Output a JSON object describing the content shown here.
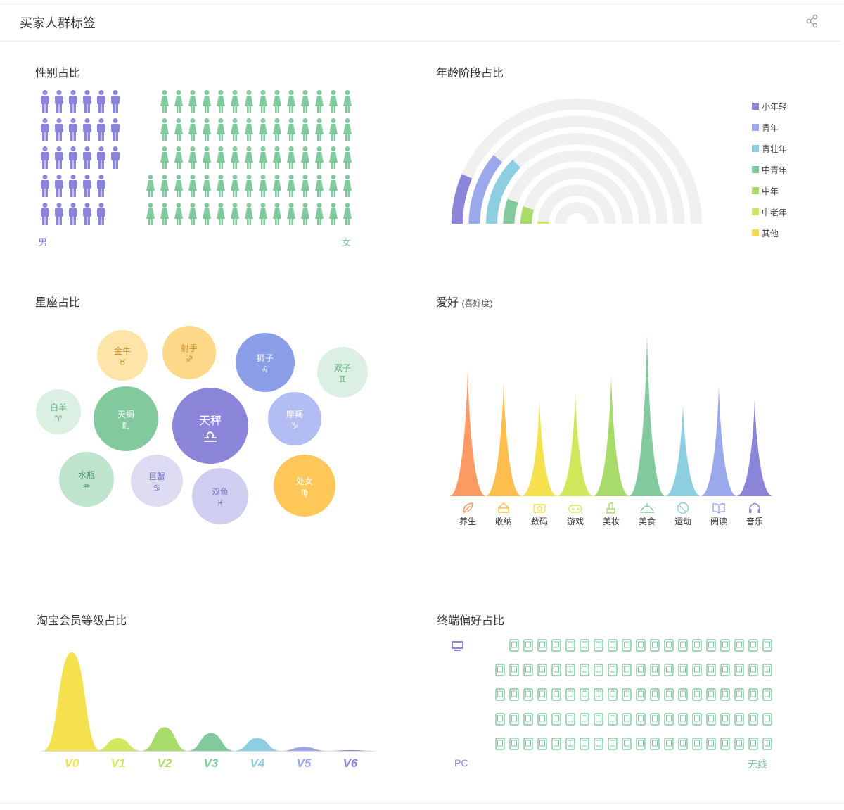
{
  "header": {
    "title": "买家人群标签"
  },
  "gender": {
    "title": "性别占比",
    "male_label": "男",
    "female_label": "女",
    "male_count": 28,
    "female_count": 72,
    "male_color": "#8a85d8",
    "female_color": "#82c99e"
  },
  "age": {
    "title": "年龄阶段占比",
    "items": [
      {
        "label": "小年轻",
        "color": "#8a85d8",
        "value": 0.13
      },
      {
        "label": "青年",
        "color": "#9aa9ec",
        "value": 0.22
      },
      {
        "label": "青壮年",
        "color": "#8dcfe0",
        "value": 0.25
      },
      {
        "label": "中青年",
        "color": "#82c99e",
        "value": 0.11
      },
      {
        "label": "中年",
        "color": "#a8dc6a",
        "value": 0.1
      },
      {
        "label": "中老年",
        "color": "#d2e85c",
        "value": 0.02
      },
      {
        "label": "其他",
        "color": "#f3dc52",
        "value": 0.0
      }
    ]
  },
  "zodiac": {
    "title": "星座占比",
    "items": [
      {
        "name": "金牛",
        "symbol": "♉",
        "color": "#fde4a9",
        "text_color": "#c9902a"
      },
      {
        "name": "射手",
        "symbol": "♐",
        "color": "#fdd888",
        "text_color": "#c9902a"
      },
      {
        "name": "狮子",
        "symbol": "♌",
        "color": "#8a9ee8",
        "text_color": "#ffffff"
      },
      {
        "name": "双子",
        "symbol": "♊",
        "color": "#dcefe3",
        "text_color": "#5aa87a"
      },
      {
        "name": "白羊",
        "symbol": "♈",
        "color": "#dcefe3",
        "text_color": "#5aa87a"
      },
      {
        "name": "天蝎",
        "symbol": "♏",
        "color": "#82c99e",
        "text_color": "#ffffff"
      },
      {
        "name": "天秤",
        "symbol": "♎",
        "color": "#8a85d8",
        "text_color": "#ffffff"
      },
      {
        "name": "摩羯",
        "symbol": "♑",
        "color": "#b4bdf3",
        "text_color": "#ffffff"
      },
      {
        "name": "水瓶",
        "symbol": "♒",
        "color": "#bfe4cd",
        "text_color": "#4e9a6d"
      },
      {
        "name": "巨蟹",
        "symbol": "♋",
        "color": "#dddcf3",
        "text_color": "#7a77c8"
      },
      {
        "name": "双鱼",
        "symbol": "♓",
        "color": "#cfcdf0",
        "text_color": "#7a77c8"
      },
      {
        "name": "处女",
        "symbol": "♍",
        "color": "#fec757",
        "text_color": "#ffffff"
      }
    ]
  },
  "hobby": {
    "title": "爱好",
    "subtitle": "(喜好度)",
    "items": [
      {
        "label": "养生",
        "icon": "leaf-icon",
        "color": "#fb9a62",
        "value": 0.78
      },
      {
        "label": "收纳",
        "icon": "storage-icon",
        "color": "#fdbe4e",
        "value": 0.71
      },
      {
        "label": "数码",
        "icon": "camera-icon",
        "color": "#f5e04d",
        "value": 0.59
      },
      {
        "label": "游戏",
        "icon": "gamepad-icon",
        "color": "#d2e85c",
        "value": 0.64
      },
      {
        "label": "美妆",
        "icon": "lipstick-icon",
        "color": "#a8dc6a",
        "value": 0.75
      },
      {
        "label": "美食",
        "icon": "dish-icon",
        "color": "#82c99e",
        "value": 1.0
      },
      {
        "label": "运动",
        "icon": "ball-icon",
        "color": "#8dcfe0",
        "value": 0.57
      },
      {
        "label": "阅读",
        "icon": "book-icon",
        "color": "#9aa9ec",
        "value": 0.68
      },
      {
        "label": "音乐",
        "icon": "headphones-icon",
        "color": "#8a85d8",
        "value": 0.6
      }
    ]
  },
  "member": {
    "title": "淘宝会员等级占比",
    "levels": [
      {
        "label": "V0",
        "color": "#f5e04d",
        "value": 1.0
      },
      {
        "label": "V1",
        "color": "#d2e85c",
        "value": 0.13
      },
      {
        "label": "V2",
        "color": "#a8dc6a",
        "value": 0.24
      },
      {
        "label": "V3",
        "color": "#82c99e",
        "value": 0.18
      },
      {
        "label": "V4",
        "color": "#8dcfe0",
        "value": 0.13
      },
      {
        "label": "V5",
        "color": "#9aa9ec",
        "value": 0.04
      },
      {
        "label": "V6",
        "color": "#8a85d8",
        "value": 0.0
      }
    ]
  },
  "terminal": {
    "title": "终端偏好占比",
    "pc_label": "PC",
    "mobile_label": "无线",
    "pc_count": 1,
    "mobile_count": 99,
    "pc_color": "#8a85d8",
    "mobile_color": "#82c99e"
  }
}
